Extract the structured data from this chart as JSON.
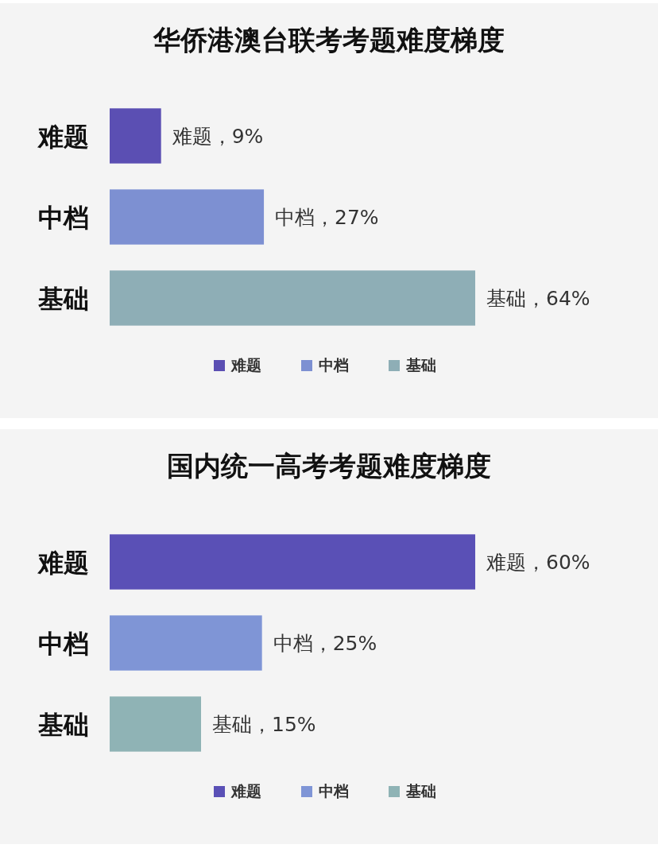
{
  "chart_data": [
    {
      "type": "bar",
      "orientation": "horizontal",
      "title": "华侨港澳台联考考题难度梯度",
      "categories": [
        "难题",
        "中档",
        "基础"
      ],
      "legend": "bottom",
      "series": [
        {
          "name": "难题",
          "color": "#5b4fb3",
          "values": [
            9,
            null,
            null
          ],
          "value_labels": [
            "难题，9%",
            null,
            null
          ]
        },
        {
          "name": "中档",
          "color": "#7d90d2",
          "values": [
            null,
            27,
            null
          ],
          "value_labels": [
            null,
            "中档，27%",
            null
          ]
        },
        {
          "name": "基础",
          "color": "#8eaeb6",
          "values": [
            null,
            null,
            64
          ],
          "value_labels": [
            null,
            null,
            "基础，64%"
          ]
        }
      ]
    },
    {
      "type": "bar",
      "orientation": "horizontal",
      "title": "国内统一高考考题难度梯度",
      "categories": [
        "难题",
        "中档",
        "基础"
      ],
      "legend": "bottom",
      "series": [
        {
          "name": "难题",
          "color": "#5a50b6",
          "values": [
            60,
            null,
            null
          ],
          "value_labels": [
            "难题，60%",
            null,
            null
          ]
        },
        {
          "name": "中档",
          "color": "#7f95d6",
          "values": [
            null,
            25,
            null
          ],
          "value_labels": [
            null,
            "中档，25%",
            null
          ]
        },
        {
          "name": "基础",
          "color": "#8fb3b5",
          "values": [
            null,
            null,
            15
          ],
          "value_labels": [
            null,
            null,
            "基础，15%"
          ]
        }
      ]
    }
  ]
}
